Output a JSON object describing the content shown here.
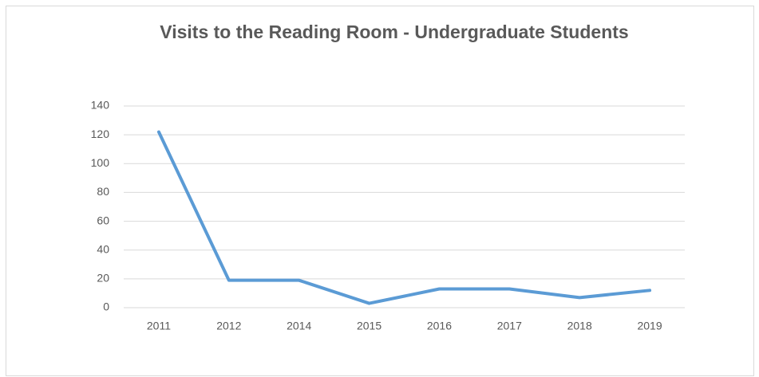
{
  "chart_data": {
    "type": "line",
    "title": "Visits to the Reading Room -  Undergraduate Students",
    "categories": [
      "2011",
      "2012",
      "2014",
      "2015",
      "2016",
      "2017",
      "2018",
      "2019"
    ],
    "series": [
      {
        "name": "Visits",
        "color": "#5b9bd5",
        "values": [
          122,
          19,
          19,
          3,
          13,
          13,
          7,
          12
        ]
      }
    ],
    "ylim": [
      0,
      140
    ],
    "yticks": [
      0,
      20,
      40,
      60,
      80,
      100,
      120,
      140
    ],
    "grid": true
  }
}
